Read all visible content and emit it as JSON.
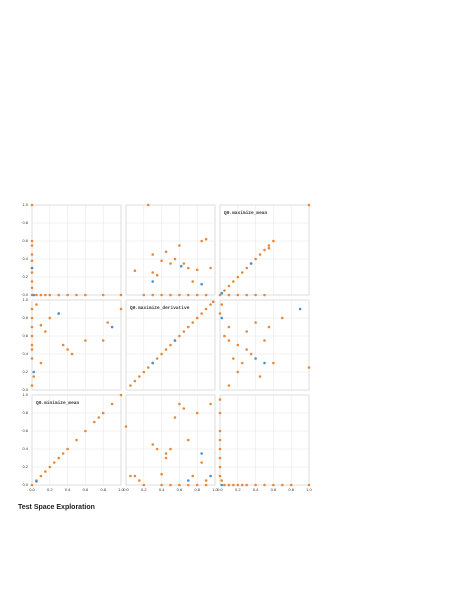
{
  "chart_data": {
    "type": "scatter",
    "title": "Test Space Exploration",
    "xlim": [
      0,
      1
    ],
    "ylim": [
      0,
      1
    ],
    "xticks": [
      {
        "value": 0,
        "label": "0.0"
      },
      0.2,
      0.4,
      0.6,
      0.8,
      {
        "value": 1,
        "label": "1.0"
      }
    ],
    "yticks": [
      {
        "value": 0,
        "label": "0.0"
      },
      0.2,
      0.4,
      0.6,
      0.8,
      {
        "value": 1,
        "label": "1.0"
      }
    ],
    "grid": true,
    "panels": [
      {
        "series": [
          {
            "color": "#e8883a",
            "x": [
              0,
              0,
              0,
              0,
              0,
              0,
              0,
              0,
              0,
              0.05,
              0.1,
              0.15,
              0.2,
              0.3,
              0.4,
              0.5,
              0.6,
              0.8,
              1.0,
              0
            ],
            "values": [
              0.6,
              0.55,
              0.45,
              0.38,
              0.3,
              0.25,
              0.15,
              0.08,
              0,
              0,
              0,
              0,
              0,
              0,
              0,
              0,
              0,
              0,
              0,
              1.0
            ]
          },
          {
            "color": "#4c8fcf",
            "x": [
              0,
              0.02
            ],
            "values": [
              0.3,
              0
            ]
          }
        ]
      },
      {
        "series": [
          {
            "color": "#e8883a",
            "x": [
              0.1,
              0.3,
              0.3,
              0.35,
              0.4,
              0.45,
              0.5,
              0.55,
              0.6,
              0.65,
              0.7,
              0.75,
              0.8,
              0.85,
              0.9,
              0.95,
              0.2,
              0.3,
              0.4,
              0.5,
              0.6,
              0.7,
              0.8,
              0.9,
              0.25
            ],
            "values": [
              0.27,
              0.45,
              0.25,
              0.22,
              0.38,
              0.48,
              0.35,
              0.4,
              0.55,
              0.35,
              0.3,
              0.15,
              0.28,
              0.6,
              0.62,
              0.3,
              0,
              0,
              0,
              0,
              0,
              0,
              0,
              0,
              1.0
            ]
          },
          {
            "color": "#4c8fcf",
            "x": [
              0.3,
              0.62,
              0.85
            ],
            "values": [
              0.15,
              0.32,
              0.12
            ]
          }
        ]
      },
      {
        "label": "Q0.maximize_mean",
        "series": [
          {
            "color": "#e8883a",
            "x": [
              0,
              0.05,
              0.1,
              0.15,
              0.2,
              0.25,
              0.3,
              0.35,
              0.4,
              0.45,
              0.5,
              0.55,
              0.6,
              0.1,
              0.2,
              0.3,
              0.4,
              0.5,
              1.0,
              0.55
            ],
            "values": [
              0,
              0.05,
              0.1,
              0.15,
              0.2,
              0.25,
              0.3,
              0.35,
              0.4,
              0.45,
              0.5,
              0.55,
              0.6,
              0,
              0,
              0,
              0,
              0,
              1.0,
              0.52
            ]
          },
          {
            "color": "#4c8fcf",
            "x": [
              0.02,
              0.35
            ],
            "values": [
              0.02,
              0.35
            ]
          }
        ]
      },
      {
        "series": [
          {
            "color": "#e8883a",
            "x": [
              0,
              0,
              0,
              0,
              0,
              0,
              0,
              0.05,
              0.1,
              0.15,
              0.2,
              0.35,
              0.4,
              0.45,
              0.6,
              0.8,
              0.85,
              1.0,
              0.02,
              0.3,
              0.1,
              0
            ],
            "values": [
              0.9,
              0.8,
              0.7,
              0.6,
              0.5,
              0.45,
              0.35,
              0.95,
              0.72,
              0.65,
              0.8,
              0.5,
              0.45,
              0.4,
              0.55,
              0.55,
              0.75,
              0.9,
              0.15,
              0.85,
              0.3,
              0.05
            ]
          },
          {
            "color": "#4c8fcf",
            "x": [
              0.3,
              0.9,
              0.02
            ],
            "values": [
              0.85,
              0.7,
              0.2
            ]
          }
        ]
      },
      {
        "label": "Q0.maximize_derivative",
        "series": [
          {
            "color": "#e8883a",
            "x": [
              0.05,
              0.1,
              0.15,
              0.2,
              0.25,
              0.3,
              0.35,
              0.4,
              0.45,
              0.5,
              0.55,
              0.6,
              0.65,
              0.7,
              0.75,
              0.8,
              0.85,
              0.9,
              0.95,
              0.98
            ],
            "values": [
              0.05,
              0.1,
              0.15,
              0.2,
              0.25,
              0.3,
              0.35,
              0.4,
              0.45,
              0.5,
              0.55,
              0.6,
              0.65,
              0.7,
              0.75,
              0.8,
              0.85,
              0.9,
              0.95,
              0.98
            ]
          },
          {
            "color": "#4c8fcf",
            "x": [
              0.3,
              0.55
            ],
            "values": [
              0.3,
              0.55
            ]
          }
        ]
      },
      {
        "series": [
          {
            "color": "#e8883a",
            "x": [
              0.02,
              0,
              0.1,
              0.1,
              0.15,
              0.2,
              0.25,
              0.3,
              0.35,
              0.4,
              0.45,
              0.5,
              0.55,
              0.6,
              0.7,
              0.1,
              0.2,
              1.0,
              0.05,
              0.3
            ],
            "values": [
              0.95,
              0.85,
              0.7,
              0.55,
              0.35,
              0.5,
              0.3,
              0.45,
              0.4,
              0.75,
              0.15,
              0.55,
              0.7,
              0.3,
              0.8,
              0.05,
              0.2,
              0.25,
              0.6,
              0.65
            ]
          },
          {
            "color": "#4c8fcf",
            "x": [
              0.02,
              0.4,
              0.5,
              0.9
            ],
            "values": [
              0.8,
              0.35,
              0.3,
              0.9
            ]
          }
        ]
      },
      {
        "label": "Q0.minimize_mean",
        "series": [
          {
            "color": "#e8883a",
            "x": [
              0,
              0.05,
              0.1,
              0.15,
              0.2,
              0.25,
              0.3,
              0.35,
              0.4,
              0.5,
              0.6,
              0.7,
              0.75,
              0.8,
              0.9,
              1.0
            ],
            "values": [
              0,
              0.05,
              0.1,
              0.15,
              0.2,
              0.25,
              0.3,
              0.35,
              0.4,
              0.5,
              0.6,
              0.7,
              0.75,
              0.8,
              0.9,
              1.0
            ]
          },
          {
            "color": "#4c8fcf",
            "x": [
              0.05
            ],
            "values": [
              0.04
            ]
          }
        ]
      },
      {
        "series": [
          {
            "color": "#e8883a",
            "x": [
              0.05,
              0.1,
              0.15,
              0.2,
              0.3,
              0.35,
              0.4,
              0.45,
              0.5,
              0.55,
              0.6,
              0.65,
              0.7,
              0.75,
              0.8,
              0.85,
              0.9,
              0.95,
              0.4,
              0.5,
              0.6,
              0.7,
              0.8,
              0.9,
              0,
              0.45
            ],
            "values": [
              0.1,
              0.1,
              0.05,
              0,
              0.45,
              0.4,
              0.12,
              0.3,
              0.4,
              0.75,
              0.9,
              0.85,
              0.5,
              0.1,
              0.8,
              0.25,
              0.05,
              0.9,
              0,
              0,
              0,
              0,
              0,
              0,
              0.65,
              0.35
            ]
          },
          {
            "color": "#4c8fcf",
            "x": [
              0.85,
              0.7,
              0.95
            ],
            "values": [
              0.35,
              0.05,
              0.1
            ]
          }
        ]
      },
      {
        "series": [
          {
            "color": "#e8883a",
            "x": [
              0,
              0,
              0,
              0,
              0,
              0,
              0,
              0,
              0.05,
              0.1,
              0.15,
              0.2,
              0.25,
              0.3,
              0.4,
              0.5,
              0.6,
              0.7,
              0.8,
              1.0,
              0.02
            ],
            "values": [
              0.95,
              0.8,
              0.6,
              0.5,
              0.4,
              0.3,
              0.2,
              0.1,
              0,
              0,
              0,
              0,
              0,
              0,
              0,
              0,
              0,
              0,
              0,
              0,
              0.05
            ]
          },
          {
            "color": "#4c8fcf",
            "x": [
              0.02
            ],
            "values": [
              0
            ]
          }
        ]
      }
    ]
  }
}
